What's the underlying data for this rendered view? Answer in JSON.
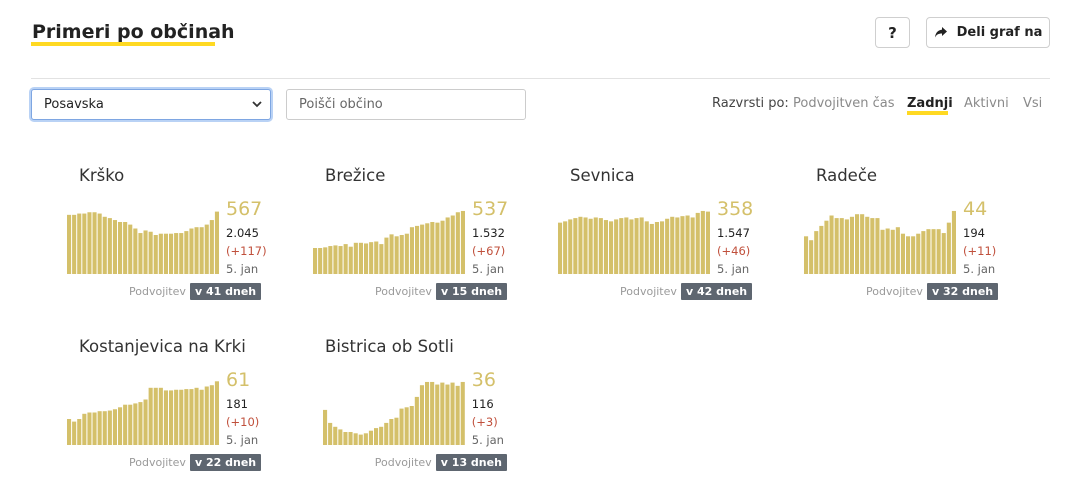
{
  "header": {
    "title": "Primeri po občinah",
    "help_label": "?",
    "share_label": "Deli graf na"
  },
  "filters": {
    "region_selected": "Posavska",
    "search_placeholder": "Poišči občino"
  },
  "sort": {
    "label": "Razvrsti po:",
    "options": [
      "Podvojitven čas",
      "Zadnji",
      "Aktivni",
      "Vsi"
    ],
    "active": "Zadnji"
  },
  "colors": {
    "bar": "#d4c06a",
    "accent_underline": "#ffd922",
    "delta": "#c0503c",
    "badge": "#5e6670"
  },
  "doubling_label": "Podvojitev",
  "chart_data": [
    {
      "type": "bar",
      "name": "Krško",
      "active": "567",
      "total": "2.045",
      "delta": "(+117)",
      "date": "5. jan",
      "doubling": "v 41 dneh",
      "values": [
        0.91,
        0.91,
        0.93,
        0.93,
        0.95,
        0.95,
        0.93,
        0.88,
        0.86,
        0.83,
        0.8,
        0.8,
        0.76,
        0.7,
        0.63,
        0.67,
        0.65,
        0.6,
        0.62,
        0.62,
        0.62,
        0.63,
        0.63,
        0.66,
        0.7,
        0.72,
        0.72,
        0.76,
        0.83,
        0.96
      ]
    },
    {
      "type": "bar",
      "name": "Brežice",
      "active": "537",
      "total": "1.532",
      "delta": "(+67)",
      "date": "5. jan",
      "doubling": "v 15 dneh",
      "values": [
        0.4,
        0.4,
        0.41,
        0.43,
        0.44,
        0.43,
        0.46,
        0.42,
        0.48,
        0.48,
        0.47,
        0.49,
        0.5,
        0.46,
        0.56,
        0.61,
        0.58,
        0.6,
        0.62,
        0.72,
        0.74,
        0.76,
        0.78,
        0.8,
        0.79,
        0.82,
        0.87,
        0.9,
        0.95,
        0.97
      ]
    },
    {
      "type": "bar",
      "name": "Sevnica",
      "active": "358",
      "total": "1.547",
      "delta": "(+46)",
      "date": "5. jan",
      "doubling": "v 42 dneh",
      "values": [
        0.79,
        0.81,
        0.84,
        0.86,
        0.88,
        0.87,
        0.85,
        0.87,
        0.86,
        0.83,
        0.81,
        0.84,
        0.86,
        0.87,
        0.84,
        0.86,
        0.87,
        0.81,
        0.77,
        0.8,
        0.81,
        0.85,
        0.88,
        0.87,
        0.89,
        0.9,
        0.87,
        0.94,
        0.97,
        0.96
      ]
    },
    {
      "type": "bar",
      "name": "Radeče",
      "active": "44",
      "total": "194",
      "delta": "(+11)",
      "date": "5. jan",
      "doubling": "v 32 dneh",
      "values": [
        0.58,
        0.52,
        0.66,
        0.74,
        0.82,
        0.9,
        0.86,
        0.86,
        0.84,
        0.88,
        0.92,
        0.92,
        0.88,
        0.86,
        0.86,
        0.68,
        0.7,
        0.68,
        0.72,
        0.62,
        0.58,
        0.58,
        0.62,
        0.66,
        0.69,
        0.69,
        0.69,
        0.63,
        0.79,
        0.97
      ]
    },
    {
      "type": "bar",
      "name": "Kostanjevica na Krki",
      "active": "61",
      "total": "181",
      "delta": "(+10)",
      "date": "5. jan",
      "doubling": "v 22 dneh",
      "values": [
        0.4,
        0.36,
        0.4,
        0.48,
        0.5,
        0.5,
        0.52,
        0.52,
        0.53,
        0.55,
        0.58,
        0.62,
        0.62,
        0.64,
        0.66,
        0.7,
        0.88,
        0.88,
        0.88,
        0.84,
        0.84,
        0.85,
        0.85,
        0.86,
        0.86,
        0.88,
        0.85,
        0.9,
        0.92,
        0.98
      ]
    },
    {
      "type": "bar",
      "name": "Bistrica ob Sotli",
      "active": "36",
      "total": "116",
      "delta": "(+3)",
      "date": "5. jan",
      "doubling": "v 13 dneh",
      "values": [
        0.54,
        0.34,
        0.28,
        0.24,
        0.2,
        0.2,
        0.18,
        0.16,
        0.18,
        0.22,
        0.26,
        0.28,
        0.34,
        0.4,
        0.42,
        0.56,
        0.58,
        0.6,
        0.74,
        0.92,
        0.97,
        0.97,
        0.93,
        0.96,
        0.93,
        0.96,
        0.91,
        0.97
      ]
    }
  ]
}
